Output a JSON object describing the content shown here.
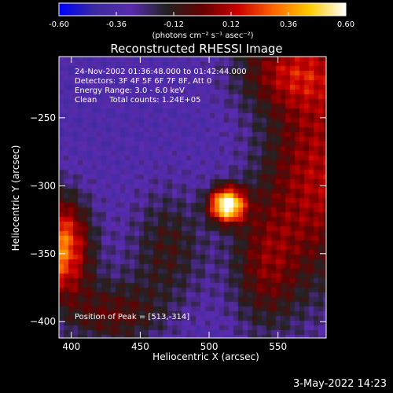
{
  "chart_data": {
    "type": "heatmap",
    "title": "Reconstructed RHESSI Image",
    "xlabel": "Heliocentric X (arcsec)",
    "ylabel": "Heliocentric Y (arcsec)",
    "xlim": [
      391,
      585
    ],
    "ylim": [
      -412,
      -205
    ],
    "x_ticks": [
      400,
      450,
      500,
      550
    ],
    "y_ticks": [
      -250,
      -300,
      -350,
      -400
    ],
    "colorbar": {
      "range": [
        -0.6,
        0.6
      ],
      "ticks": [
        "-0.60",
        "-0.36",
        "-0.12",
        "0.12",
        "0.36",
        "0.60"
      ],
      "units": "(photons cm⁻² s⁻¹ asec⁻²)"
    },
    "annotations": [
      "24-Nov-2002 01:36:48.000 to 01:42:44.000",
      "Detectors: 3F 4F 5F 6F 7F 8F, Att 0",
      "Energy Range: 3.0 - 6.0 keV",
      "Clean     Total counts: 1.24E+05"
    ],
    "peak_label": "Position of Peak = [513,-314]",
    "peak": {
      "x": 513,
      "y": -314
    },
    "colors": {
      "stops": [
        "#0000ff",
        "#3c2b9e",
        "#5a2bb0",
        "#222222",
        "#660000",
        "#cc0000",
        "#ff6600",
        "#ffcc00",
        "#ffffff"
      ]
    }
  },
  "footer": {
    "date": "3-May-2022 14:23"
  }
}
